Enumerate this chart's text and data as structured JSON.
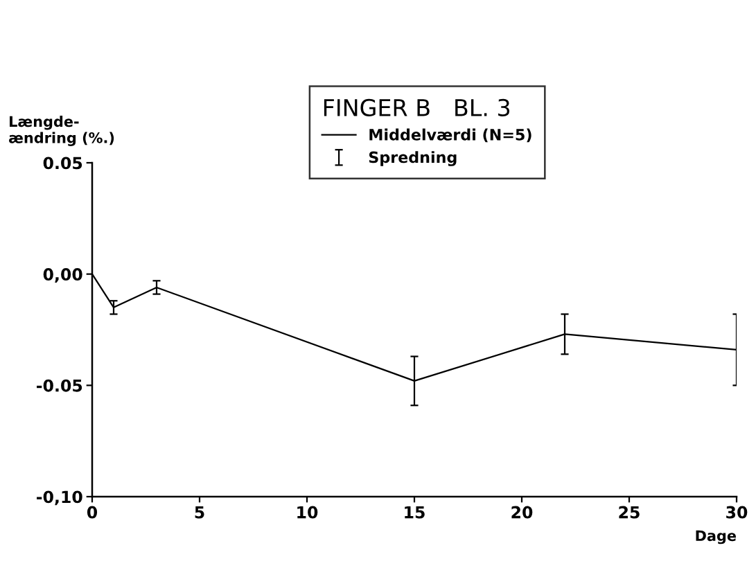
{
  "chart_data": {
    "type": "line",
    "title": "FINGER B   BL. 3",
    "xlabel": "Dage",
    "ylabel": "Længde-\nændring (%.)",
    "x": [
      0,
      1,
      3,
      15,
      22,
      30
    ],
    "series": [
      {
        "name": "Middelværdi (N=5)",
        "color": "#000000",
        "values": [
          0,
          -0.015,
          -0.006,
          -0.048,
          -0.027,
          -0.034
        ],
        "errors": [
          null,
          0.003,
          0.003,
          0.011,
          0.009,
          0.016
        ]
      }
    ],
    "annotations": [
      "Spredning"
    ],
    "xlim": [
      0,
      30
    ],
    "xticks": [
      0,
      5,
      10,
      15,
      20,
      25,
      30
    ],
    "ylim": [
      -0.1,
      0.05
    ],
    "yticks": [
      {
        "value": 0.05,
        "label": "0.05"
      },
      {
        "value": 0,
        "label": "0,00"
      },
      {
        "value": -0.05,
        "label": "-0.05"
      },
      {
        "value": -0.1,
        "label": "-0,10"
      }
    ],
    "grid": false,
    "legend": "top",
    "marker": "none",
    "line_style": "solid"
  }
}
